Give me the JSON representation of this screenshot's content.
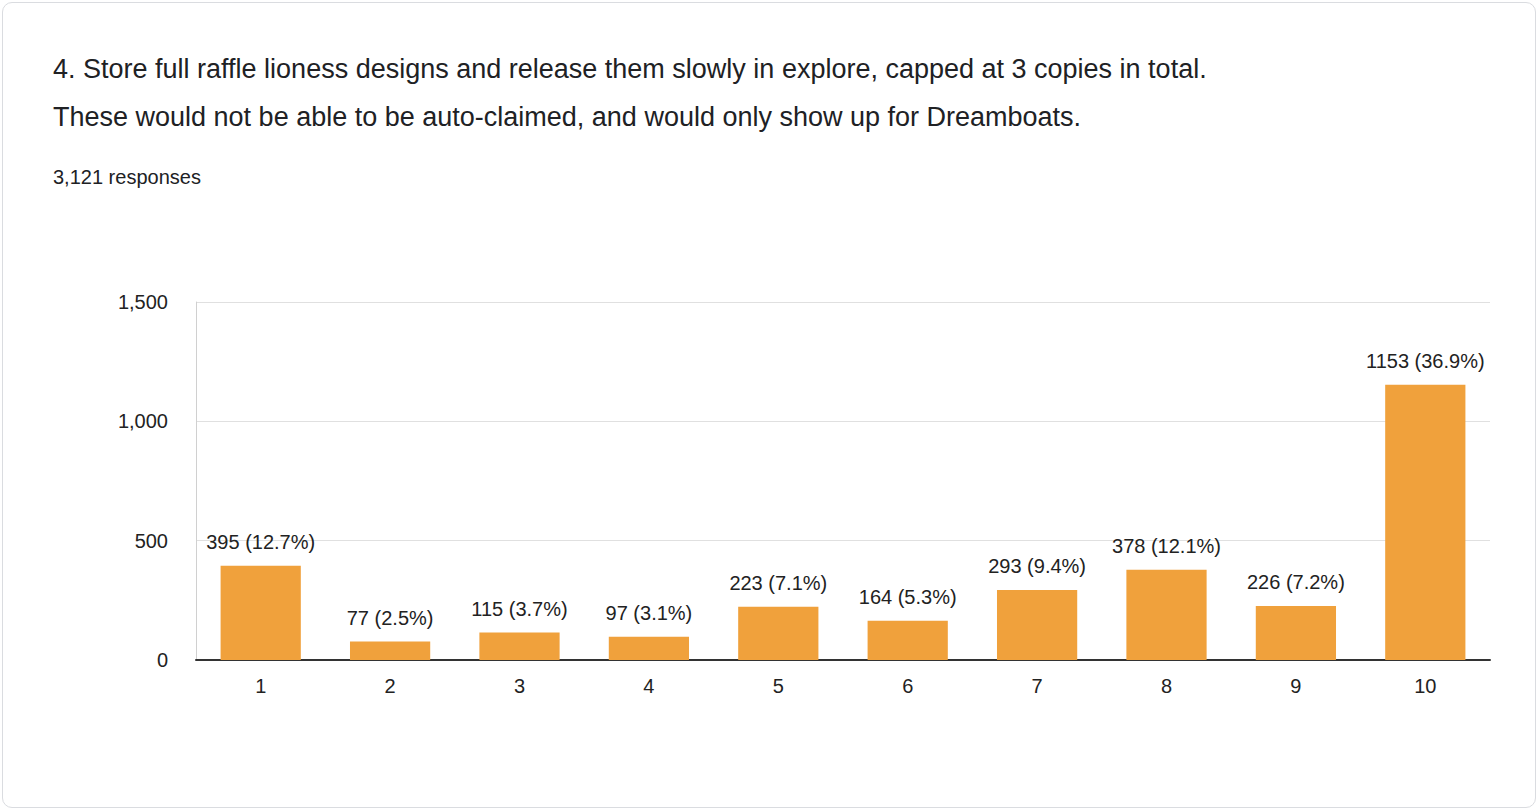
{
  "chart_data": {
    "type": "bar",
    "title": "4. Store full raffle lioness designs and release them slowly in explore, capped at 3 copies in total.  These would not be able to be auto-claimed, and would only show up for Dreamboats.",
    "subtitle": "3,121 responses",
    "categories": [
      "1",
      "2",
      "3",
      "4",
      "5",
      "6",
      "7",
      "8",
      "9",
      "10"
    ],
    "values": [
      395,
      77,
      115,
      97,
      223,
      164,
      293,
      378,
      226,
      1153
    ],
    "value_labels": [
      "395 (12.7%)",
      "77 (2.5%)",
      "115 (3.7%)",
      "97 (3.1%)",
      "223 (7.1%)",
      "164 (5.3%)",
      "293 (9.4%)",
      "378 (12.1%)",
      "226 (7.2%)",
      "1153 (36.9%)"
    ],
    "color": "#f0a13c",
    "ylim": [
      0,
      1500
    ],
    "yticks": [
      0,
      500,
      {
        "value": 1000,
        "label": "1,000"
      },
      {
        "value": 1500,
        "label": "1,500"
      }
    ],
    "grid": true,
    "data_labels": true
  }
}
